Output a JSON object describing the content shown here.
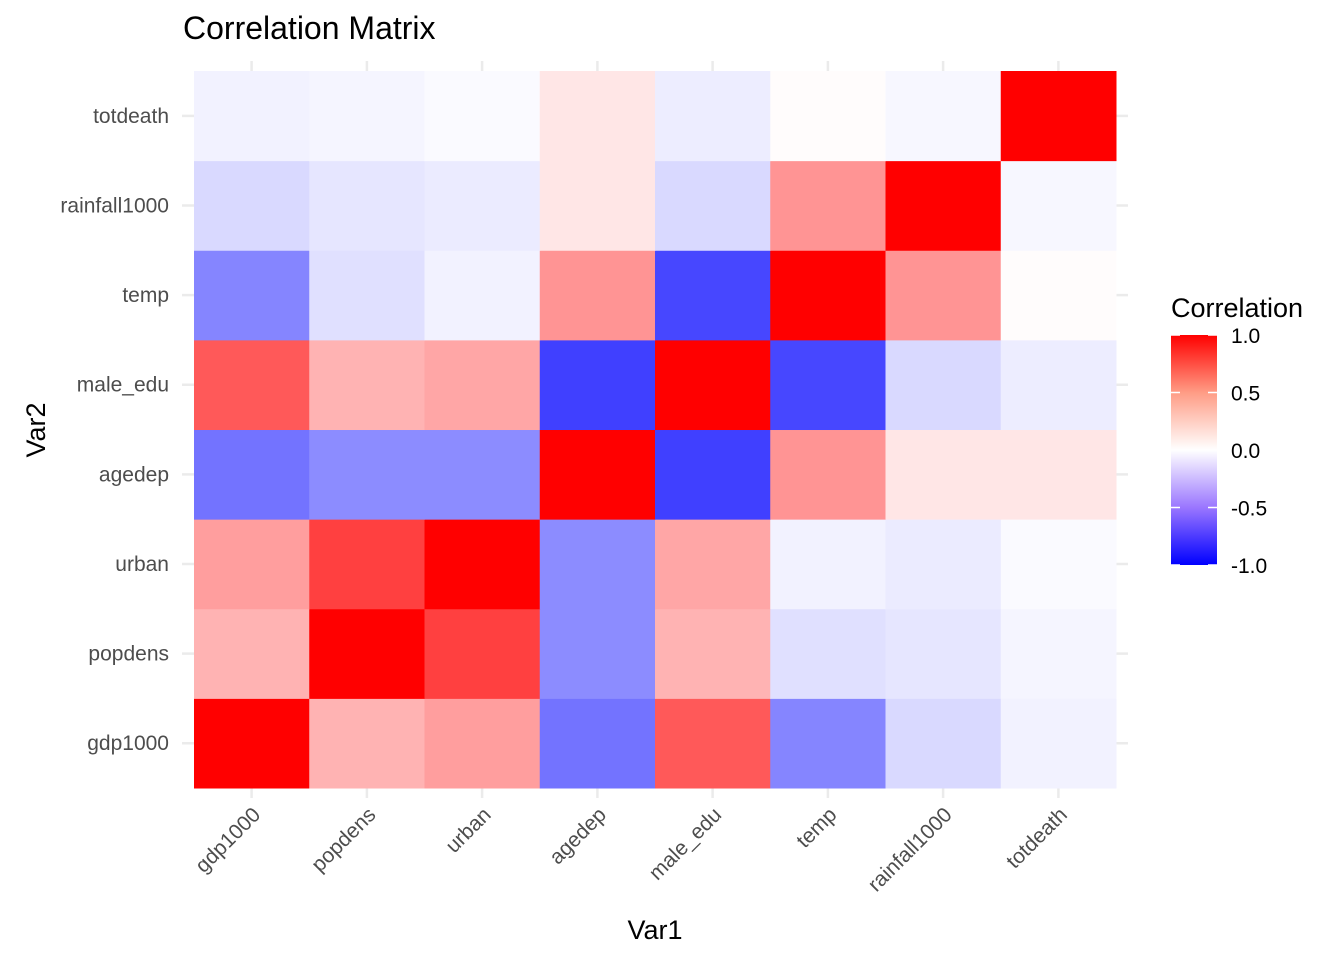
{
  "chart_data": {
    "type": "heatmap",
    "title": "Correlation Matrix",
    "xlabel": "Var1",
    "ylabel": "Var2",
    "x_categories": [
      "gdp1000",
      "popdens",
      "urban",
      "agedep",
      "male_edu",
      "temp",
      "rainfall1000",
      "totdeath"
    ],
    "y_categories": [
      "gdp1000",
      "popdens",
      "urban",
      "agedep",
      "male_edu",
      "temp",
      "rainfall1000",
      "totdeath"
    ],
    "values": [
      [
        1.0,
        0.3,
        0.38,
        -0.55,
        0.65,
        -0.48,
        -0.15,
        -0.05
      ],
      [
        0.3,
        1.0,
        0.75,
        -0.45,
        0.3,
        -0.12,
        -0.1,
        -0.04
      ],
      [
        0.38,
        0.75,
        1.0,
        -0.45,
        0.35,
        -0.05,
        -0.08,
        -0.02
      ],
      [
        -0.55,
        -0.45,
        -0.45,
        1.0,
        -0.75,
        0.42,
        0.1,
        0.1
      ],
      [
        0.65,
        0.3,
        0.35,
        -0.75,
        1.0,
        -0.72,
        -0.15,
        -0.07
      ],
      [
        -0.48,
        -0.12,
        -0.05,
        0.42,
        -0.72,
        1.0,
        0.42,
        0.01
      ],
      [
        -0.15,
        -0.1,
        -0.08,
        0.1,
        -0.15,
        0.42,
        1.0,
        -0.03
      ],
      [
        -0.05,
        -0.04,
        -0.02,
        0.1,
        -0.07,
        0.01,
        -0.03,
        1.0
      ]
    ],
    "legend": {
      "title": "Correlation",
      "ticks": [
        "1.0",
        "0.5",
        "0.0",
        "-0.5",
        "-1.0"
      ],
      "tick_values": [
        1.0,
        0.5,
        0.0,
        -0.5,
        -1.0
      ],
      "range": [
        -1,
        1
      ],
      "low_color": "#0000ff",
      "mid_color": "#ffffff",
      "high_color": "#ff0000",
      "placement": "right"
    },
    "grid": true
  }
}
